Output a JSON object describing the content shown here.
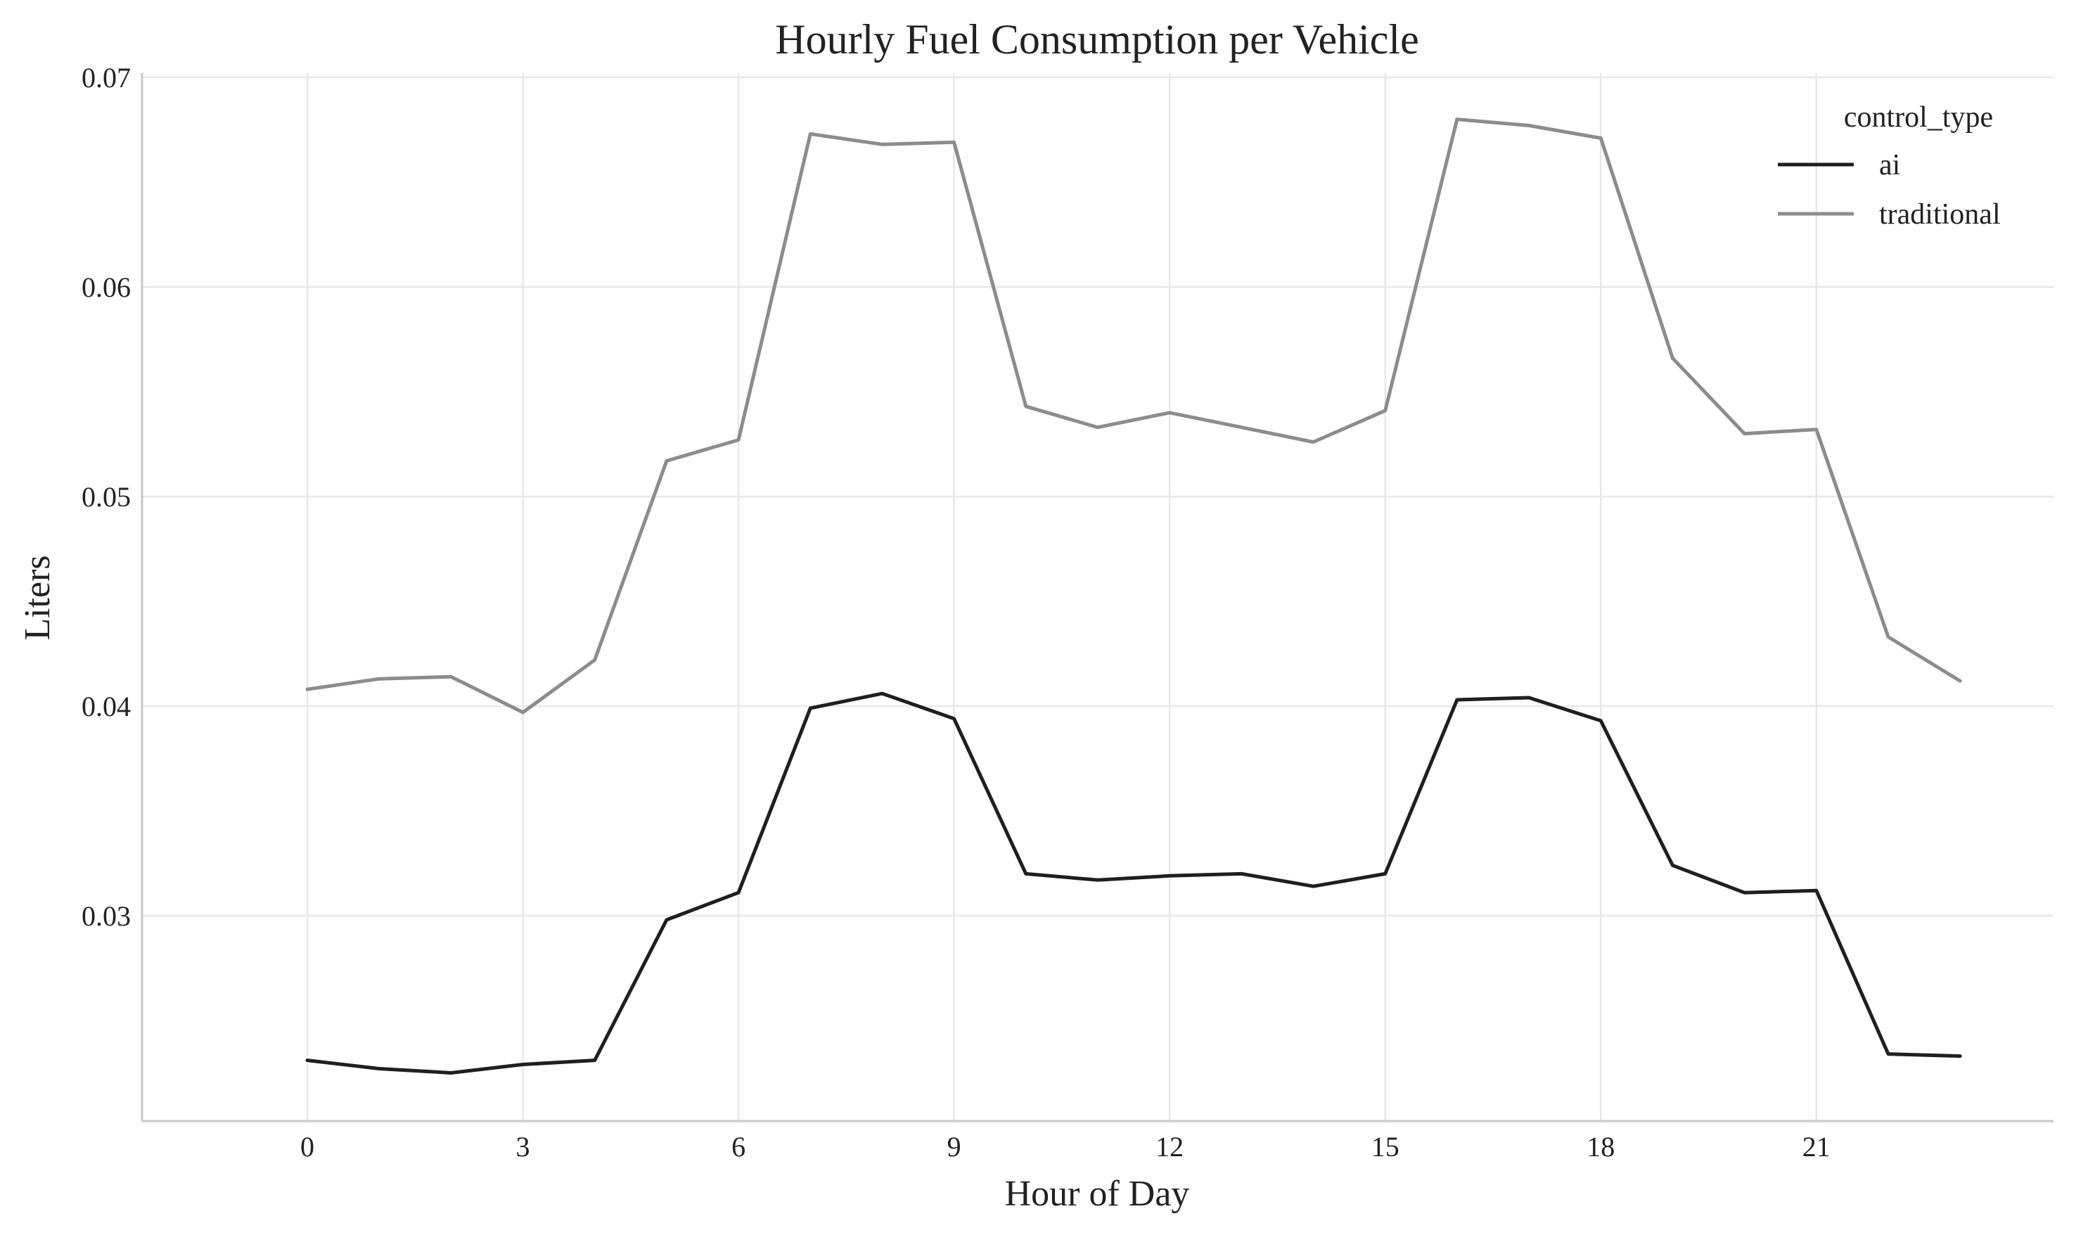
{
  "chart_data": {
    "type": "line",
    "title": "Hourly Fuel Consumption per Vehicle",
    "xlabel": "Hour of Day",
    "ylabel": "Liters",
    "x": [
      0,
      1,
      2,
      3,
      4,
      5,
      6,
      7,
      8,
      9,
      10,
      11,
      12,
      13,
      14,
      15,
      16,
      17,
      18,
      19,
      20,
      21,
      22,
      23
    ],
    "xlim": [
      -2.3,
      24.3
    ],
    "ylim": [
      0.0202,
      0.0702
    ],
    "xticks": [
      0,
      3,
      6,
      9,
      12,
      15,
      18,
      21
    ],
    "yticks": [
      0.03,
      0.04,
      0.05,
      0.06,
      0.07
    ],
    "ytick_labels": [
      "0.03",
      "0.04",
      "0.05",
      "0.06",
      "0.07"
    ],
    "grid": true,
    "legend": {
      "title": "control_type",
      "placement": "top-right"
    },
    "series": [
      {
        "name": "ai",
        "color": "#1f1f1f",
        "values": [
          0.0231,
          0.0227,
          0.0225,
          0.0229,
          0.0231,
          0.0298,
          0.0311,
          0.0399,
          0.0406,
          0.0394,
          0.032,
          0.0317,
          0.0319,
          0.032,
          0.0314,
          0.032,
          0.0403,
          0.0404,
          0.0393,
          0.0324,
          0.0311,
          0.0312,
          0.0234,
          0.0233
        ]
      },
      {
        "name": "traditional",
        "color": "#8c8c8c",
        "values": [
          0.0408,
          0.0413,
          0.0414,
          0.0397,
          0.0422,
          0.0517,
          0.0527,
          0.0673,
          0.0668,
          0.0669,
          0.0543,
          0.0533,
          0.054,
          0.0533,
          0.0526,
          0.0541,
          0.068,
          0.0677,
          0.0671,
          0.0566,
          0.053,
          0.0532,
          0.0433,
          0.0412
        ]
      }
    ]
  }
}
